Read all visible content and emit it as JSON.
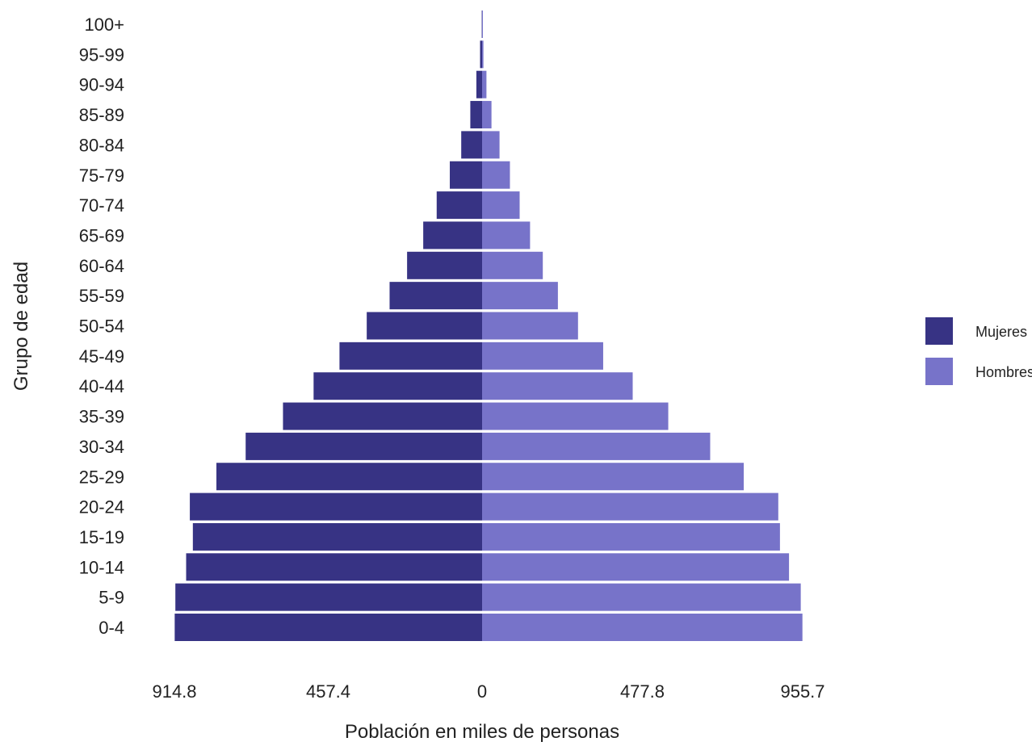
{
  "chart_data": {
    "type": "bar",
    "orientation": "horizontal",
    "layout": "population-pyramid",
    "categories": [
      "0-4",
      "5-9",
      "10-14",
      "15-19",
      "20-24",
      "25-29",
      "30-34",
      "35-39",
      "40-44",
      "45-49",
      "50-54",
      "55-59",
      "60-64",
      "65-69",
      "70-74",
      "75-79",
      "80-84",
      "85-89",
      "90-94",
      "95-99",
      "100+"
    ],
    "series": [
      {
        "name": "Mujeres",
        "side": "left",
        "color": "#373384",
        "values": [
          914,
          912,
          880,
          860,
          869,
          790,
          703,
          592,
          501,
          424,
          343,
          275,
          223,
          175,
          135,
          96,
          62,
          35,
          17,
          6,
          1
        ]
      },
      {
        "name": "Hombres",
        "side": "right",
        "color": "#7773c9",
        "values": [
          955,
          950,
          915,
          888,
          883,
          780,
          680,
          555,
          449,
          361,
          286,
          226,
          181,
          143,
          112,
          83,
          52,
          28,
          13,
          4,
          1
        ]
      }
    ],
    "xlabel": "Población en miles de personas",
    "ylabel": "Grupo de edad",
    "xlim": [
      -914.8,
      955.7
    ],
    "xtick_labels": [
      {
        "value": -914.8,
        "label": "914.8"
      },
      {
        "value": -457.4,
        "label": "457.4"
      },
      {
        "value": 0,
        "label": "0"
      },
      {
        "value": 477.8,
        "label": "477.8"
      },
      {
        "value": 955.7,
        "label": "955.7"
      }
    ],
    "grid": false,
    "legend": "right"
  }
}
